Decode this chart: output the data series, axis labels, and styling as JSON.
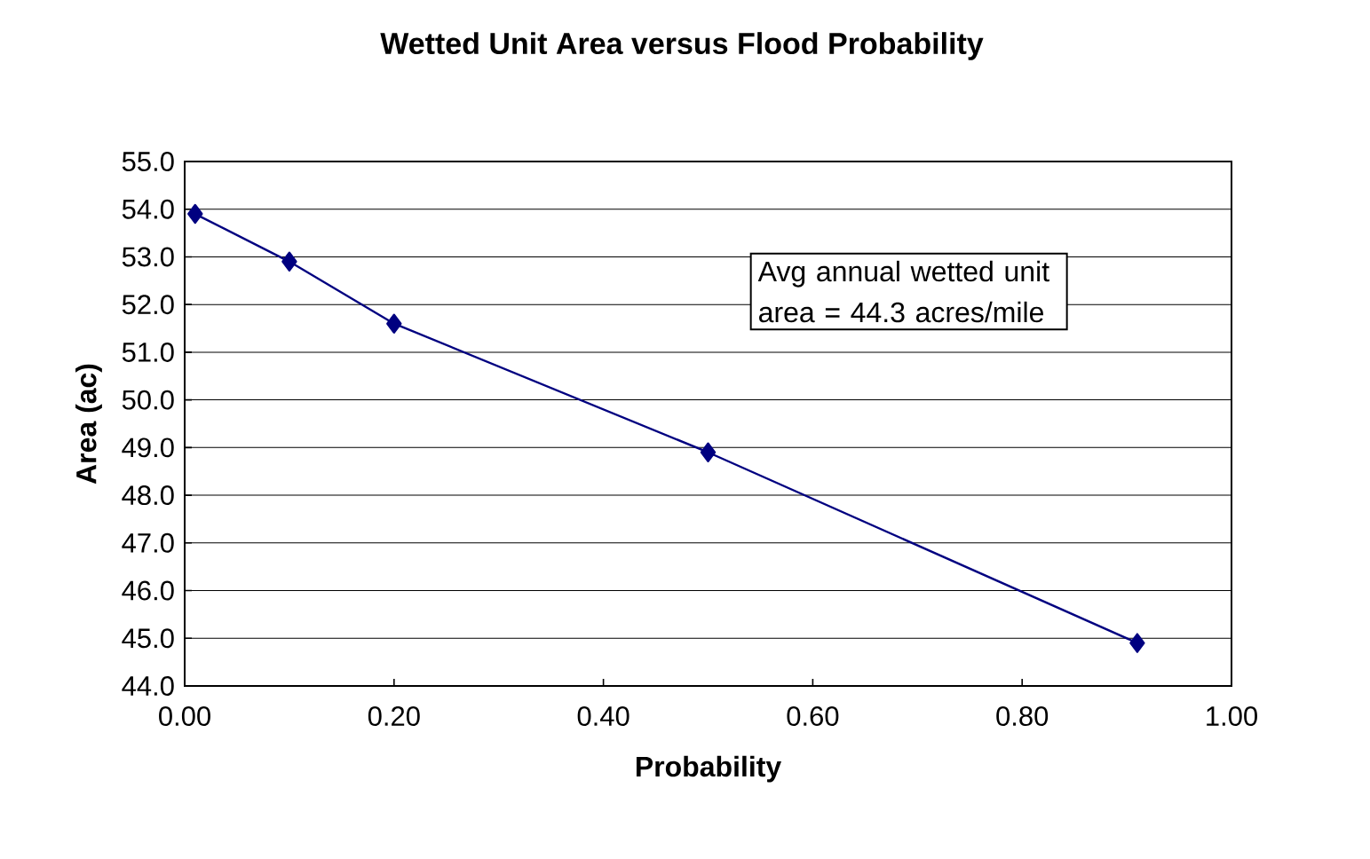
{
  "chart_data": {
    "type": "line",
    "title": "Wetted Unit Area versus Flood Probability",
    "xlabel": "Probability",
    "ylabel": "Area (ac)",
    "x": [
      0.01,
      0.1,
      0.2,
      0.5,
      0.91
    ],
    "series": [
      {
        "color": "#000080",
        "values": [
          53.9,
          52.9,
          51.6,
          48.9,
          44.9
        ]
      }
    ],
    "xlim": [
      0,
      1
    ],
    "ylim": [
      44,
      55
    ],
    "xticks": [
      {
        "value": 0,
        "label": "0.00"
      },
      {
        "value": 0.2,
        "label": "0.20"
      },
      {
        "value": 0.4,
        "label": "0.40"
      },
      {
        "value": 0.6,
        "label": "0.60"
      },
      {
        "value": 0.8,
        "label": "0.80"
      },
      {
        "value": 1,
        "label": "1.00"
      }
    ],
    "yticks": [
      {
        "value": 44,
        "label": "44.0"
      },
      {
        "value": 45,
        "label": "45.0"
      },
      {
        "value": 46,
        "label": "46.0"
      },
      {
        "value": 47,
        "label": "47.0"
      },
      {
        "value": 48,
        "label": "48.0"
      },
      {
        "value": 49,
        "label": "49.0"
      },
      {
        "value": 50,
        "label": "50.0"
      },
      {
        "value": 51,
        "label": "51.0"
      },
      {
        "value": 52,
        "label": "52.0"
      },
      {
        "value": 53,
        "label": "53.0"
      },
      {
        "value": 54,
        "label": "54.0"
      },
      {
        "value": 55,
        "label": "55.0"
      }
    ],
    "grid": "y",
    "marker": "diamond",
    "line_style": "solid",
    "annotations": [
      "Avg annual wetted unit area = 44.3 acres/mile"
    ]
  }
}
